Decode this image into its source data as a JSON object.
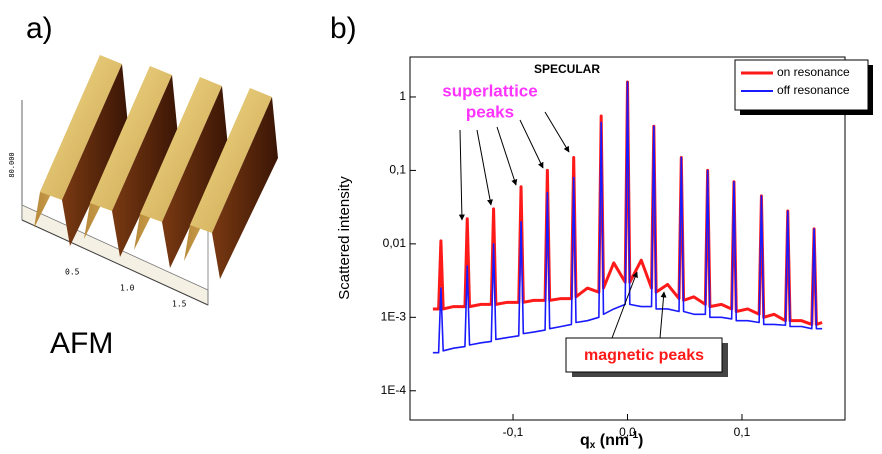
{
  "panels": [
    {
      "label": "a)",
      "caption": "AFM",
      "axis_labels": [
        "0.5",
        "1.0",
        "1.5"
      ],
      "height_label": "80.000"
    },
    {
      "label": "b)"
    }
  ],
  "chart_data": {
    "type": "line",
    "log_y": true,
    "ylabel": "Scattered intensity",
    "xlabel": {
      "main": "q",
      "sub": "x",
      "unit": " (nm",
      "sup": "-1",
      "close": ")"
    },
    "annotations": {
      "specular": "SPECULAR",
      "superlattice": [
        "superlattice",
        "peaks"
      ],
      "magnetic": "magnetic peaks"
    },
    "xlim": [
      -0.19,
      0.19
    ],
    "xticks": [
      {
        "value": -0.1,
        "label": "-0,1"
      },
      {
        "value": 0,
        "label": "0,0"
      },
      {
        "value": 0.1,
        "label": "0,1"
      }
    ],
    "ylim": [
      4e-05,
      3.5
    ],
    "yticks": [
      {
        "value": 1,
        "label": "1"
      },
      {
        "value": 0.1,
        "label": "0,1"
      },
      {
        "value": 0.01,
        "label": "0,01"
      },
      {
        "value": 0.001,
        "label": "1E-3"
      },
      {
        "value": 0.0001,
        "label": "1E-4"
      }
    ],
    "legend": "top-right",
    "x": [
      -0.17,
      -0.165,
      -0.163,
      -0.161,
      -0.152,
      -0.142,
      -0.14,
      -0.138,
      -0.128,
      -0.119,
      -0.117,
      -0.115,
      -0.105,
      -0.095,
      -0.093,
      -0.091,
      -0.082,
      -0.072,
      -0.07,
      -0.068,
      -0.058,
      -0.049,
      -0.047,
      -0.045,
      -0.035,
      -0.025,
      -0.023,
      -0.021,
      -0.012,
      -0.002,
      0,
      0.002,
      0.012,
      0.021,
      0.023,
      0.025,
      0.035,
      0.045,
      0.047,
      0.049,
      0.058,
      0.068,
      0.07,
      0.072,
      0.082,
      0.091,
      0.093,
      0.095,
      0.105,
      0.115,
      0.117,
      0.119,
      0.128,
      0.138,
      0.14,
      0.142,
      0.152,
      0.161,
      0.163,
      0.165,
      0.17
    ],
    "series": [
      {
        "name": "on resonance",
        "color": "#ff1a1a",
        "values": [
          0.0013,
          0.0013,
          0.011,
          0.0013,
          0.0014,
          0.0014,
          0.022,
          0.0014,
          0.0015,
          0.0015,
          0.03,
          0.0015,
          0.0016,
          0.0016,
          0.06,
          0.0016,
          0.0017,
          0.0017,
          0.1,
          0.0017,
          0.0018,
          0.0018,
          0.15,
          0.0019,
          0.0025,
          0.0022,
          0.55,
          0.0025,
          0.0055,
          0.003,
          1.6,
          0.003,
          0.006,
          0.0025,
          0.4,
          0.0022,
          0.0028,
          0.0018,
          0.15,
          0.0017,
          0.0019,
          0.0015,
          0.1,
          0.0014,
          0.0015,
          0.0013,
          0.07,
          0.0012,
          0.0013,
          0.0011,
          0.045,
          0.001,
          0.0011,
          0.0009,
          0.028,
          0.0009,
          0.0009,
          0.0008,
          0.016,
          0.0008,
          0.00085
        ]
      },
      {
        "name": "off resonance",
        "color": "#1a1aff",
        "values": [
          0.00033,
          0.00033,
          0.0025,
          0.00035,
          0.00038,
          0.0004,
          0.005,
          0.00042,
          0.00045,
          0.00047,
          0.01,
          0.0005,
          0.00053,
          0.00056,
          0.02,
          0.0006,
          0.00063,
          0.00067,
          0.05,
          0.0007,
          0.00075,
          0.0008,
          0.08,
          0.00085,
          0.0009,
          0.001,
          0.45,
          0.0011,
          0.0013,
          0.0015,
          1.6,
          0.0015,
          0.0014,
          0.0014,
          0.4,
          0.0013,
          0.0013,
          0.0012,
          0.15,
          0.0012,
          0.0011,
          0.0011,
          0.1,
          0.001,
          0.001,
          0.00095,
          0.07,
          0.0009,
          0.0009,
          0.00085,
          0.045,
          0.0008,
          0.0008,
          0.00078,
          0.028,
          0.00075,
          0.00075,
          0.0007,
          0.016,
          0.0007,
          0.0007
        ]
      }
    ]
  }
}
